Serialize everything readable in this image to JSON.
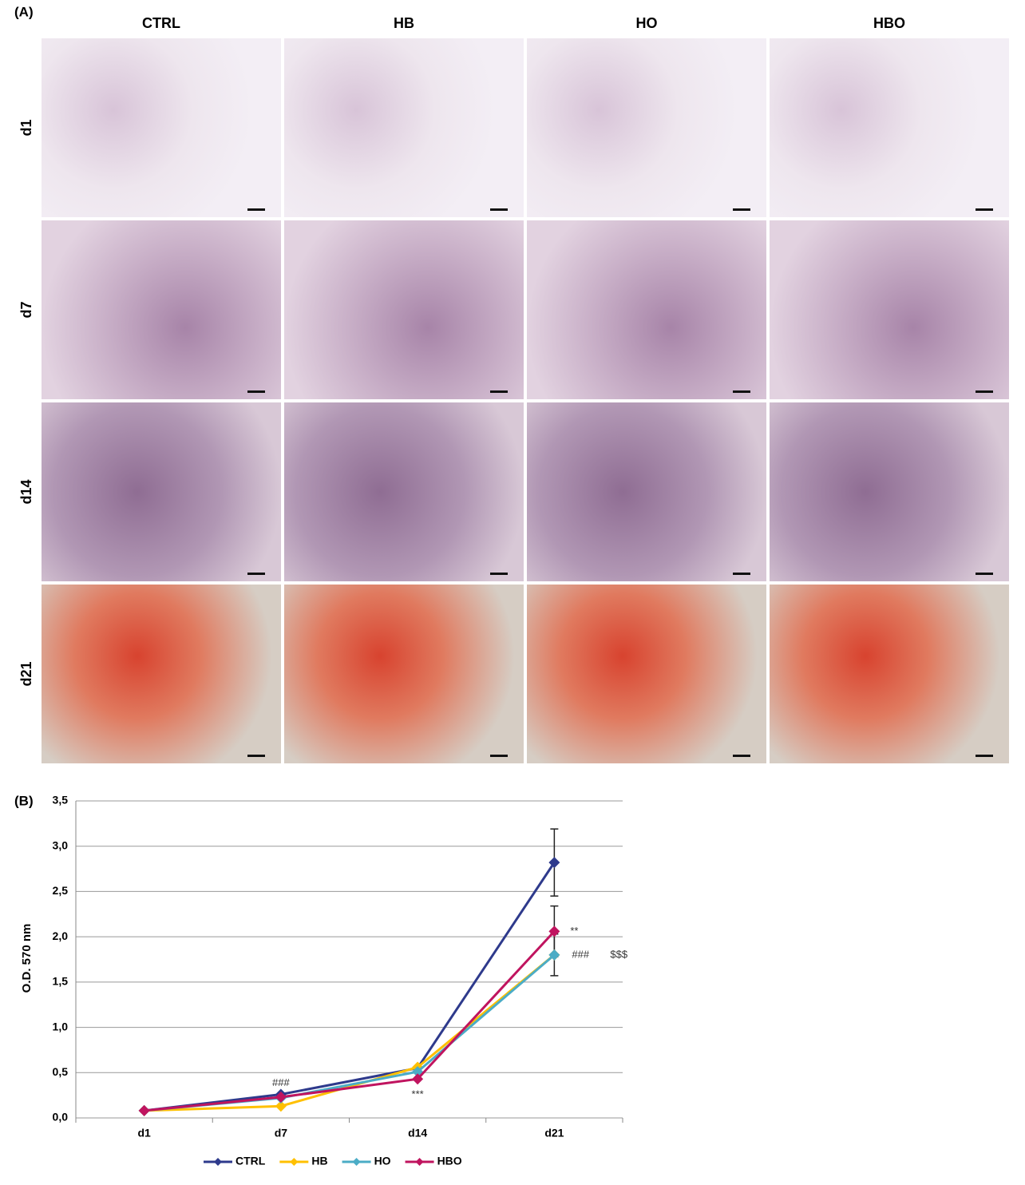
{
  "panel_a": {
    "label": "(A)",
    "columns": [
      "CTRL",
      "HB",
      "HO",
      "HBO"
    ],
    "rows": [
      "d1",
      "d7",
      "d14",
      "d21"
    ]
  },
  "chart_data": {
    "type": "line",
    "panel_label": "(B)",
    "y_label": "O.D. 570 nm",
    "categories": [
      "d1",
      "d7",
      "d14",
      "d21"
    ],
    "series": [
      {
        "name": "CTRL",
        "color": "#2e3a8c",
        "values": [
          0.08,
          0.26,
          0.55,
          2.82
        ],
        "errors": [
          null,
          null,
          null,
          0.37
        ]
      },
      {
        "name": "HB",
        "color": "#ffc000",
        "values": [
          0.08,
          0.13,
          0.56,
          1.8
        ],
        "errors": [
          null,
          null,
          null,
          null
        ]
      },
      {
        "name": "HO",
        "color": "#4bacc6",
        "values": [
          0.08,
          0.22,
          0.51,
          1.8
        ],
        "errors": [
          null,
          null,
          null,
          0.23
        ]
      },
      {
        "name": "HBO",
        "color": "#c0145f",
        "values": [
          0.08,
          0.23,
          0.43,
          2.06
        ],
        "errors": [
          null,
          null,
          null,
          0.28
        ]
      }
    ],
    "annotations": [
      "###",
      "***",
      "**",
      "###",
      "$$$"
    ],
    "ylim": [
      0,
      3.5
    ],
    "yticks": [
      {
        "value": 0,
        "label": "0,0"
      },
      {
        "value": 0.5,
        "label": "0,5"
      },
      {
        "value": 1,
        "label": "1,0"
      },
      {
        "value": 1.5,
        "label": "1,5"
      },
      {
        "value": 2,
        "label": "2,0"
      },
      {
        "value": 2.5,
        "label": "2,5"
      },
      {
        "value": 3,
        "label": "3,0"
      },
      {
        "value": 3.5,
        "label": "3,5"
      }
    ],
    "grid": true,
    "legend": "bottom"
  }
}
